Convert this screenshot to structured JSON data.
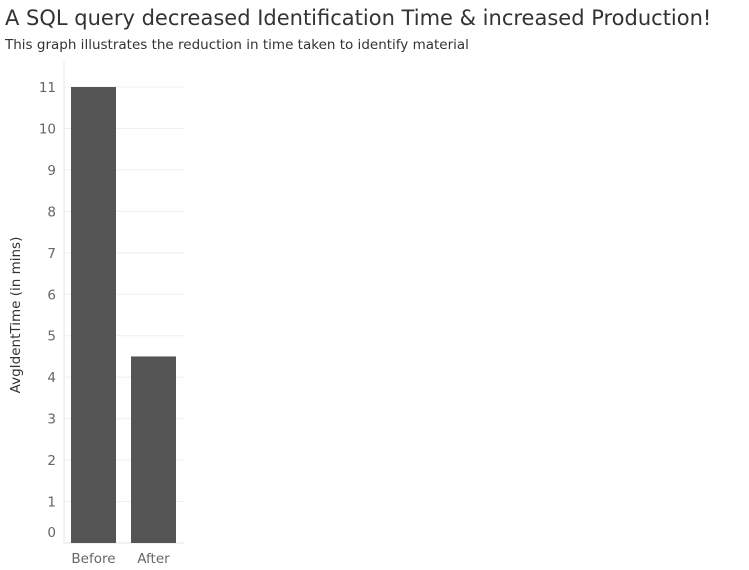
{
  "header": {
    "title": "A SQL query decreased Identification Time & increased Production!",
    "subtitle": "This graph illustrates the reduction in time taken to identify material"
  },
  "colors": {
    "bar": "#555555",
    "gridline": "#efefef",
    "axis_line": "#e6e6e6",
    "tick_text": "#666666",
    "title_text": "#333333"
  },
  "chart_data": {
    "type": "bar",
    "categories": [
      "Before",
      "After"
    ],
    "values": [
      11,
      4.5
    ],
    "title": "A SQL query decreased Identification Time & increased Production!",
    "subtitle": "This graph illustrates the reduction in time taken to identify material",
    "xlabel": "",
    "ylabel": "AvgIdentTime (in mins)",
    "ylim": [
      0,
      11
    ],
    "yticks": [
      0,
      1,
      2,
      3,
      4,
      5,
      6,
      7,
      8,
      9,
      10,
      11
    ],
    "grid": true,
    "legend": "none"
  }
}
